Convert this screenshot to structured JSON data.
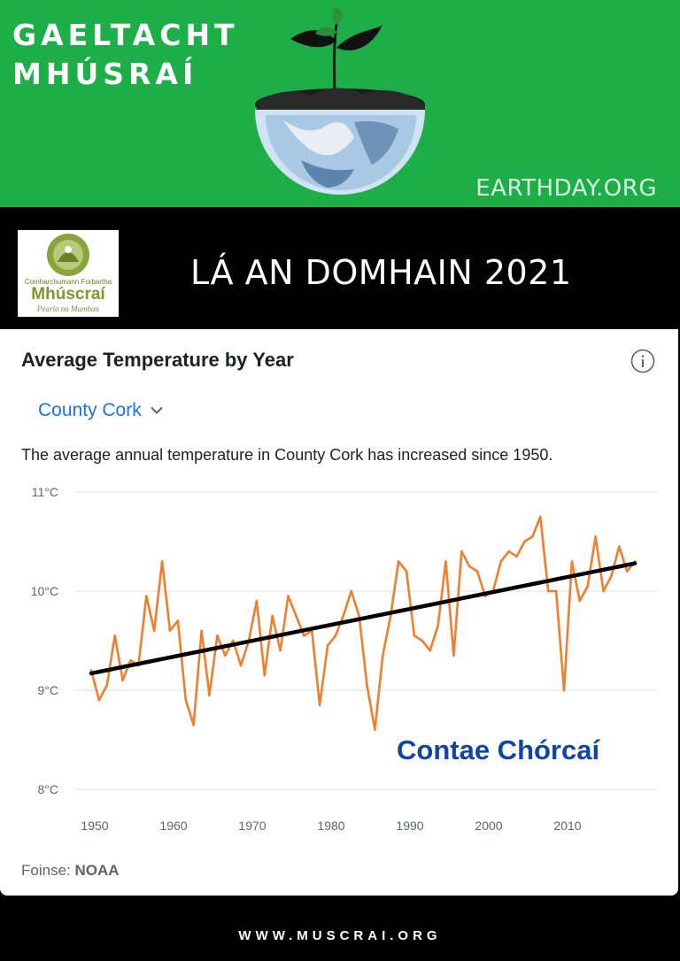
{
  "banner": {
    "brand_line1": "GAELTACHT",
    "brand_line2": "MHÚSRAÍ",
    "site_mark": "EARTHDAY.ORG",
    "bg_color": "#1eae48"
  },
  "titlebar": {
    "logo_line1": "Comharchumann Forbartha",
    "logo_line2": "Mhúscraí",
    "logo_line3": "Péarla na Mumhan",
    "title": "LÁ AN DOMHAIN 2021"
  },
  "card": {
    "title": "Average Temperature by Year",
    "info_icon": "info-icon",
    "location": "County Cork",
    "location_icon": "chevron-down-icon",
    "description": "The average annual temperature in County Cork has increased since 1950.",
    "overlay_label": "Contae Chórcaí",
    "source_label": "Foinse:",
    "source_name": "NOAA"
  },
  "chart_data": {
    "type": "line",
    "title": "Average Temperature by Year",
    "xlabel": "",
    "ylabel": "",
    "xlim": [
      1950,
      2019
    ],
    "ylim": [
      8,
      11
    ],
    "x_ticks": [
      "1950",
      "1960",
      "1970",
      "1980",
      "1990",
      "2000",
      "2010"
    ],
    "y_ticks": [
      "11°C",
      "10°C",
      "9°C",
      "8°C"
    ],
    "grid": true,
    "colors": {
      "series": "#ef7e2d",
      "trend": "#000000",
      "grid": "#e6e6e6"
    },
    "x": [
      1950,
      1951,
      1952,
      1953,
      1954,
      1955,
      1956,
      1957,
      1958,
      1959,
      1960,
      1961,
      1962,
      1963,
      1964,
      1965,
      1966,
      1967,
      1968,
      1969,
      1970,
      1971,
      1972,
      1973,
      1974,
      1975,
      1976,
      1977,
      1978,
      1979,
      1980,
      1981,
      1982,
      1983,
      1984,
      1985,
      1986,
      1987,
      1988,
      1989,
      1990,
      1991,
      1992,
      1993,
      1994,
      1995,
      1996,
      1997,
      1998,
      1999,
      2000,
      2001,
      2002,
      2003,
      2004,
      2005,
      2006,
      2007,
      2008,
      2009,
      2010,
      2011,
      2012,
      2013,
      2014,
      2015,
      2016,
      2017,
      2018,
      2019
    ],
    "series": [
      {
        "values": [
          9.2,
          8.9,
          9.05,
          9.55,
          9.1,
          9.3,
          9.25,
          9.95,
          9.6,
          10.3,
          9.6,
          9.7,
          8.9,
          8.65,
          9.6,
          8.95,
          9.55,
          9.35,
          9.5,
          9.25,
          9.5,
          9.9,
          9.15,
          9.75,
          9.4,
          9.95,
          9.75,
          9.55,
          9.6,
          8.85,
          9.45,
          9.55,
          9.75,
          10.0,
          9.75,
          9.05,
          8.6,
          9.35,
          9.75,
          10.3,
          10.2,
          9.55,
          9.5,
          9.4,
          9.65,
          10.3,
          9.35,
          10.4,
          10.25,
          10.2,
          9.95,
          10.0,
          10.3,
          10.4,
          10.35,
          10.5,
          10.55,
          10.75,
          10.0,
          10.0,
          9.0,
          10.3,
          9.9,
          10.05,
          10.55,
          10.0,
          10.15,
          10.45,
          10.2,
          10.3
        ]
      }
    ],
    "trend": {
      "from": [
        1950,
        9.17
      ],
      "to": [
        2019,
        10.28
      ]
    }
  },
  "footer": {
    "url": "WWW.MUSCRAI.ORG"
  }
}
